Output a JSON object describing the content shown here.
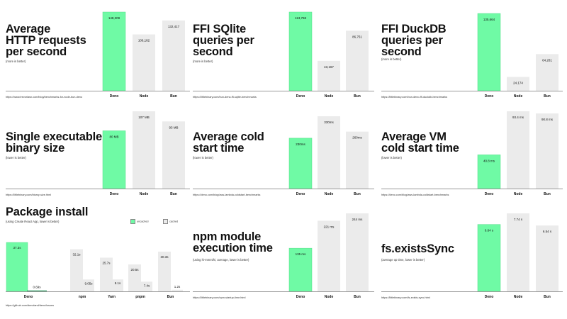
{
  "colors": {
    "deno": "#6ffaa5",
    "deno_stroke": "#55dd88",
    "other": "#ebebeb",
    "label": "#111111"
  },
  "panels": [
    {
      "id": "http",
      "title": [
        "Average",
        "HTTP requests",
        "per second"
      ],
      "subtitle": "(more is better)",
      "source": "https://www.trevorlasn.com/blog/benchmarks-for-node-bun-deno"
    },
    {
      "id": "sqlite",
      "title": [
        "FFI SQlite",
        "queries per",
        "second"
      ],
      "subtitle": "(more is better)",
      "source": "https://littlebinary.com/bun-deno-ffi-sqlite-benchmarks"
    },
    {
      "id": "duckdb",
      "title": [
        "FFI DuckDB",
        "queries per",
        "second"
      ],
      "subtitle": "(more is better)",
      "source": "https://littlebinary.com/bun-deno-ffi-duckdb-benchmarks"
    },
    {
      "id": "binary",
      "title": [
        "Single executable",
        "binary size"
      ],
      "subtitle": "(lower is better)",
      "source": "https://littlebinary.com/binary-size.html"
    },
    {
      "id": "cold",
      "title": [
        "Average cold",
        "start time"
      ],
      "subtitle": "(lower is better)",
      "source": "https://deno.com/blog/aws-lambda-coldstart-benchmarks"
    },
    {
      "id": "vm",
      "title": [
        "Average VM",
        "cold start time"
      ],
      "subtitle": "(lower is better)",
      "source": "https://deno.com/blog/aws-lambda-coldstart-benchmarks"
    },
    {
      "id": "install",
      "title": [
        "Package install"
      ],
      "subtitle": "(using Create React App, lower is better)",
      "source": "https://github.com/denoland/deno/issues"
    },
    {
      "id": "npm",
      "title": [
        "npm module",
        "execution time"
      ],
      "subtitle": "(using hi-mmm/hi, average, lower is better)",
      "source": "https://littlebinary.com/npm-startup-time.html"
    },
    {
      "id": "fs",
      "title": [
        "fs.existsSync"
      ],
      "subtitle": "(average op time, lower is better)",
      "source": "https://littlebinary.com/fs-exists-sync.html"
    }
  ],
  "legend": {
    "uncached": "uncached",
    "cached": "cached"
  },
  "chart_data": [
    {
      "type": "bar",
      "categories": [
        "Deno",
        "Node",
        "Bun"
      ],
      "values": [
        148309,
        106182,
        132417
      ],
      "labels": [
        "148,309",
        "106,182",
        "132,417"
      ],
      "title": "Average HTTP requests per second",
      "ylim": [
        0,
        148309
      ]
    },
    {
      "type": "bar",
      "categories": [
        "Deno",
        "Node",
        "Bun"
      ],
      "values": [
        113768,
        43167,
        86751
      ],
      "labels": [
        "113,768",
        "43,167",
        "86,751"
      ],
      "title": "FFI SQlite queries per second",
      "ylim": [
        0,
        113768
      ]
    },
    {
      "type": "bar",
      "categories": [
        "Deno",
        "Node",
        "Bun"
      ],
      "values": [
        135664,
        24174,
        64281
      ],
      "labels": [
        "135,664",
        "24,174",
        "64,281"
      ],
      "title": "FFI DuckDB queries per second",
      "ylim": [
        0,
        135664
      ]
    },
    {
      "type": "bar",
      "categories": [
        "Deno",
        "Node",
        "Bun"
      ],
      "values": [
        80,
        107,
        93
      ],
      "labels": [
        "80 MB",
        "107 MB",
        "93 MB"
      ],
      "title": "Single executable binary size",
      "ylim": [
        0,
        107
      ]
    },
    {
      "type": "bar",
      "categories": [
        "Deno",
        "Node",
        "Bun"
      ],
      "values": [
        230,
        330,
        260
      ],
      "labels": [
        "230ms",
        "330ms",
        "260ms"
      ],
      "title": "Average cold start time",
      "ylim": [
        0,
        330
      ]
    },
    {
      "type": "bar",
      "categories": [
        "Deno",
        "Node",
        "Bun"
      ],
      "values": [
        40.8,
        93.4,
        90.8
      ],
      "labels": [
        "40.8 ms",
        "93.4 ms",
        "90.8 ms"
      ],
      "title": "Average VM cold start time",
      "ylim": [
        0,
        93.4
      ]
    },
    {
      "type": "bar",
      "categories": [
        "Deno",
        "npm",
        "Yarn",
        "pnpm",
        "Bun"
      ],
      "series": [
        {
          "name": "uncached",
          "values": [
            37.3,
            32.1,
            25.7,
            20.5,
            30.3
          ],
          "labels": [
            "37.3s",
            "32.1s",
            "25.7s",
            "20.5s",
            "30.3s"
          ]
        },
        {
          "name": "cached",
          "values": [
            0.69,
            9.05,
            9.1,
            7.4,
            1.2
          ],
          "labels": [
            "0.69s",
            "9.05s",
            "9.1s",
            "7.4s",
            "1.2s"
          ]
        }
      ],
      "title": "Package install",
      "ylim": [
        0,
        37.3
      ]
    },
    {
      "type": "bar",
      "categories": [
        "Deno",
        "Node",
        "Bun"
      ],
      "values": [
        135,
        221,
        244
      ],
      "labels": [
        "135 ms",
        "221 ms",
        "244 ms"
      ],
      "title": "npm module execution time",
      "ylim": [
        0,
        244
      ]
    },
    {
      "type": "bar",
      "categories": [
        "Deno",
        "Node",
        "Bun"
      ],
      "values": [
        6.64,
        7.74,
        6.54
      ],
      "labels": [
        "6.64 s",
        "7.74 s",
        "6.54 s"
      ],
      "title": "fs.existsSync",
      "ylim": [
        0,
        7.74
      ]
    }
  ]
}
